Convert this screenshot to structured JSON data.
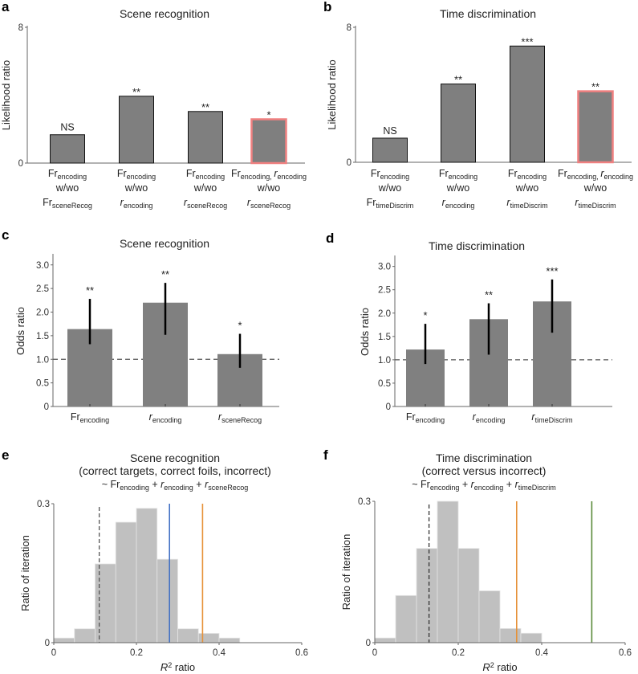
{
  "chart_data": [
    {
      "panel": "a",
      "type": "bar",
      "title": "Scene recognition",
      "ylabel": "Likelihood ratio",
      "ylim": [
        0,
        8
      ],
      "yticks": [
        "0",
        "8"
      ],
      "categories": [
        [
          [
            {
              "t": "Fr"
            },
            {
              "t": "encoding",
              "sub": true
            }
          ],
          [
            {
              "t": "w/wo"
            }
          ],
          [
            {
              "t": "Fr"
            },
            {
              "t": "sceneRecog",
              "sub": true
            }
          ]
        ],
        [
          [
            {
              "t": "Fr"
            },
            {
              "t": "encoding",
              "sub": true
            }
          ],
          [
            {
              "t": "w/wo"
            }
          ],
          [
            {
              "t": "r",
              "it": true
            },
            {
              "t": "encoding",
              "sub": true
            }
          ]
        ],
        [
          [
            {
              "t": "Fr"
            },
            {
              "t": "encoding",
              "sub": true
            }
          ],
          [
            {
              "t": "w/wo"
            }
          ],
          [
            {
              "t": "r",
              "it": true
            },
            {
              "t": "sceneRecog",
              "sub": true
            }
          ]
        ],
        [
          [
            {
              "t": "Fr"
            },
            {
              "t": "encoding, ",
              "sub": true
            },
            {
              "t": "r",
              "it": true
            },
            {
              "t": "encoding",
              "sub": true
            }
          ],
          [
            {
              "t": "w/wo"
            }
          ],
          [
            {
              "t": "r",
              "it": true
            },
            {
              "t": "sceneRecog",
              "sub": true
            }
          ]
        ]
      ],
      "values": [
        1.67,
        3.94,
        3.04,
        2.58
      ],
      "significance": [
        "NS",
        "**",
        "**",
        "*"
      ],
      "highlighted": [
        false,
        false,
        false,
        true
      ],
      "colors": {
        "bar": "#7f7f7f",
        "highlight_edge": "#f08080"
      }
    },
    {
      "panel": "b",
      "type": "bar",
      "title": "Time discrimination",
      "ylabel": "Likelihood ratio",
      "ylim": [
        0,
        8
      ],
      "yticks": [
        "0",
        "8"
      ],
      "categories": [
        [
          [
            {
              "t": "Fr"
            },
            {
              "t": "encoding",
              "sub": true
            }
          ],
          [
            {
              "t": "w/wo"
            }
          ],
          [
            {
              "t": "Fr"
            },
            {
              "t": "timeDiscrim",
              "sub": true
            }
          ]
        ],
        [
          [
            {
              "t": "Fr"
            },
            {
              "t": "encoding",
              "sub": true
            }
          ],
          [
            {
              "t": "w/wo"
            }
          ],
          [
            {
              "t": "r",
              "it": true
            },
            {
              "t": "encoding",
              "sub": true
            }
          ]
        ],
        [
          [
            {
              "t": "Fr"
            },
            {
              "t": "encoding",
              "sub": true
            }
          ],
          [
            {
              "t": "w/wo"
            }
          ],
          [
            {
              "t": "r",
              "it": true
            },
            {
              "t": "timeDiscrim",
              "sub": true
            }
          ]
        ],
        [
          [
            {
              "t": "Fr"
            },
            {
              "t": "encoding, ",
              "sub": true
            },
            {
              "t": "r",
              "it": true
            },
            {
              "t": "encoding",
              "sub": true
            }
          ],
          [
            {
              "t": "w/wo"
            }
          ],
          [
            {
              "t": "r",
              "it": true
            },
            {
              "t": "timeDiscrim",
              "sub": true
            }
          ]
        ]
      ],
      "values": [
        1.43,
        4.64,
        6.89,
        4.21
      ],
      "significance": [
        "NS",
        "**",
        "***",
        "**"
      ],
      "highlighted": [
        false,
        false,
        false,
        true
      ],
      "colors": {
        "bar": "#7f7f7f",
        "highlight_edge": "#f08080"
      }
    },
    {
      "panel": "c",
      "type": "bar",
      "title": "Scene recognition",
      "ylabel": "Odds ratio",
      "ylim": [
        0,
        3.2
      ],
      "yticks": [
        "0",
        "0.5",
        "1.0",
        "1.5",
        "2.0",
        "2.5",
        "3.0"
      ],
      "reference_line": 1.0,
      "categories": [
        [
          [
            {
              "t": "Fr"
            },
            {
              "t": "encoding",
              "sub": true
            }
          ]
        ],
        [
          [
            {
              "t": "r",
              "it": true
            },
            {
              "t": "encoding",
              "sub": true
            }
          ]
        ],
        [
          [
            {
              "t": "r",
              "it": true
            },
            {
              "t": "sceneRecog",
              "sub": true
            }
          ]
        ]
      ],
      "values": [
        1.64,
        2.2,
        1.11
      ],
      "ci_low": [
        1.32,
        1.52,
        0.82
      ],
      "ci_high": [
        2.28,
        2.62,
        1.54
      ],
      "significance": [
        "**",
        "**",
        "*"
      ],
      "colors": {
        "bar": "#808080"
      }
    },
    {
      "panel": "d",
      "type": "bar",
      "title": "Time discrimination",
      "ylabel": "Odds ratio",
      "ylim": [
        0,
        3.2
      ],
      "yticks": [
        "0",
        "0.5",
        "1.0",
        "1.5",
        "2.0",
        "2.5",
        "3.0"
      ],
      "reference_line": 1.0,
      "categories": [
        [
          [
            {
              "t": "Fr"
            },
            {
              "t": "encoding",
              "sub": true
            }
          ]
        ],
        [
          [
            {
              "t": "r",
              "it": true
            },
            {
              "t": "encoding",
              "sub": true
            }
          ]
        ],
        [
          [
            {
              "t": "r",
              "it": true
            },
            {
              "t": "timeDiscrim",
              "sub": true
            }
          ]
        ]
      ],
      "values": [
        1.22,
        1.87,
        2.25
      ],
      "ci_low": [
        0.91,
        1.11,
        1.58
      ],
      "ci_high": [
        1.77,
        2.21,
        2.72
      ],
      "significance": [
        "*",
        "**",
        "***"
      ],
      "colors": {
        "bar": "#808080"
      }
    },
    {
      "panel": "e",
      "type": "bar",
      "subtype": "histogram",
      "title": "Scene recognition",
      "subtitle": "(correct targets, correct foils, incorrect)",
      "formula": [
        {
          "t": "~ Fr"
        },
        {
          "t": "encoding",
          "sub": true
        },
        {
          "t": " + "
        },
        {
          "t": "r",
          "it": true
        },
        {
          "t": "encoding",
          "sub": true
        },
        {
          "t": " + "
        },
        {
          "t": "r",
          "it": true
        },
        {
          "t": "sceneRecog",
          "sub": true
        }
      ],
      "xlabel": [
        {
          "t": "R",
          "it": true
        },
        {
          "t": "2",
          "sup": true
        },
        {
          "t": " ratio"
        }
      ],
      "ylabel": "Ratio of iteration",
      "xlim": [
        0,
        0.6
      ],
      "ylim": [
        0,
        0.3
      ],
      "xticks": [
        "0",
        "0.2",
        "0.4",
        "0.6"
      ],
      "yticks": [
        "0",
        "0.3"
      ],
      "bin_width": 0.05,
      "bin_starts": [
        0,
        0.05,
        0.1,
        0.15,
        0.2,
        0.25,
        0.3,
        0.35,
        0.4
      ],
      "values": [
        0.01,
        0.03,
        0.17,
        0.26,
        0.29,
        0.18,
        0.03,
        0.02,
        0.01
      ],
      "vlines": [
        {
          "x": 0.11,
          "color": "#555555",
          "dashed": true
        },
        {
          "x": 0.28,
          "color": "#4472c4",
          "dashed": false
        },
        {
          "x": 0.36,
          "color": "#e69138",
          "dashed": false
        }
      ],
      "colors": {
        "bar": "#c0c0c0"
      }
    },
    {
      "panel": "f",
      "type": "bar",
      "subtype": "histogram",
      "title": "Time discrimination",
      "subtitle": "(correct versus incorrect)",
      "formula": [
        {
          "t": "~ Fr"
        },
        {
          "t": "encoding",
          "sub": true
        },
        {
          "t": " + "
        },
        {
          "t": "r",
          "it": true
        },
        {
          "t": "encoding",
          "sub": true
        },
        {
          "t": " + "
        },
        {
          "t": "r",
          "it": true
        },
        {
          "t": "timeDiscrim",
          "sub": true
        }
      ],
      "xlabel": [
        {
          "t": "R",
          "it": true
        },
        {
          "t": "2",
          "sup": true
        },
        {
          "t": " ratio"
        }
      ],
      "ylabel": "Ratio of iteration",
      "xlim": [
        0,
        0.6
      ],
      "ylim": [
        0,
        0.3
      ],
      "xticks": [
        "0",
        "0.2",
        "0.4",
        "0.6"
      ],
      "yticks": [
        "0",
        "0.3"
      ],
      "bin_width": 0.05,
      "bin_starts": [
        0,
        0.05,
        0.1,
        0.15,
        0.2,
        0.25,
        0.3,
        0.35
      ],
      "values": [
        0.01,
        0.1,
        0.2,
        0.3,
        0.2,
        0.11,
        0.03,
        0.02
      ],
      "vlines": [
        {
          "x": 0.13,
          "color": "#333333",
          "dashed": true
        },
        {
          "x": 0.34,
          "color": "#e69138",
          "dashed": false
        },
        {
          "x": 0.52,
          "color": "#5b8a3a",
          "dashed": false
        }
      ],
      "colors": {
        "bar": "#c0c0c0"
      }
    }
  ]
}
